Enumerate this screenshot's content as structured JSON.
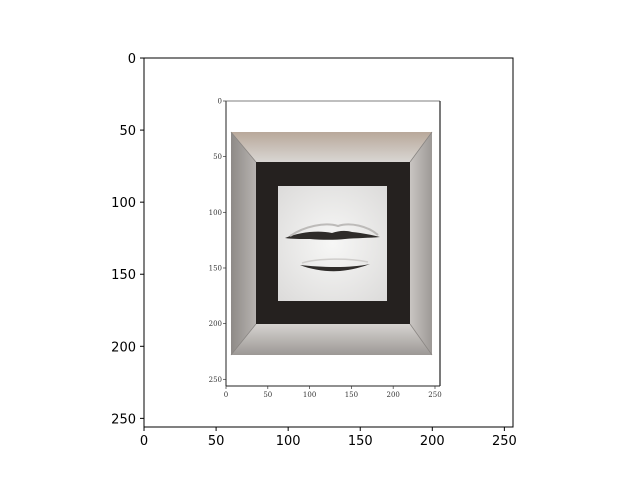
{
  "chart_data": {
    "type": "image",
    "title": "",
    "xlabel": "",
    "ylabel": "",
    "xlim": [
      0,
      255
    ],
    "ylim": [
      255,
      0
    ],
    "x_ticks": [
      0,
      50,
      100,
      150,
      200,
      250
    ],
    "y_ticks": [
      0,
      50,
      100,
      150,
      200,
      250
    ],
    "grid": false,
    "legend": "none",
    "embedded_image": {
      "description_label": "",
      "x_ticks": [
        0,
        50,
        100,
        150,
        200,
        250
      ],
      "y_ticks": [
        0,
        50,
        100,
        150,
        200,
        250
      ],
      "colors": {
        "frame": "#a9a5a2",
        "frame_light": "#d4d1ce",
        "frame_dark": "#7f7c79",
        "mat": "#25211f",
        "art_bg": "#ecebea",
        "lips": "#3a3735"
      }
    }
  }
}
